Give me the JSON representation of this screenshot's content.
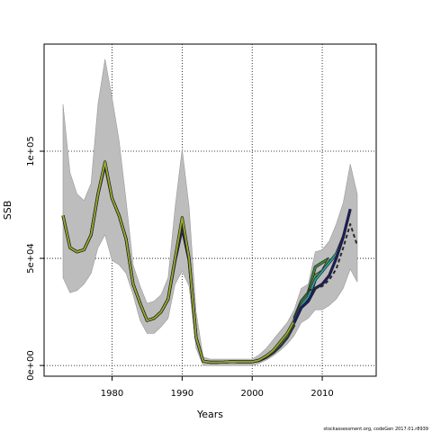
{
  "chart_data": {
    "type": "line",
    "title": "",
    "xlabel": "Years",
    "ylabel": "SSB",
    "xlim": [
      1970.3,
      2017.7
    ],
    "ylim": [
      -5000,
      150000
    ],
    "x_ticks": [
      1980,
      1990,
      2000,
      2010
    ],
    "x_tick_labels": [
      "1980",
      "1990",
      "2000",
      "2010"
    ],
    "y_ticks": [
      0,
      50000,
      100000
    ],
    "y_tick_labels": [
      "0e+00",
      "5e+04",
      "1e+05"
    ],
    "grid": "dotted",
    "legend": "none",
    "band": {
      "name": "",
      "x": [
        1973,
        1974,
        1975,
        1976,
        1977,
        1978,
        1979,
        1980,
        1981,
        1982,
        1983,
        1984,
        1985,
        1986,
        1987,
        1988,
        1989,
        1990,
        1991,
        1992,
        1993,
        1994,
        1995,
        1996,
        1997,
        1998,
        1999,
        2000,
        2001,
        2002,
        2003,
        2004,
        2005,
        2006,
        2007,
        2008,
        2009,
        2010,
        2011,
        2012,
        2013,
        2014,
        2015
      ],
      "upper": [
        122000,
        90000,
        80000,
        77000,
        85000,
        122000,
        143000,
        125000,
        105000,
        77000,
        47000,
        37000,
        29000,
        30000,
        33000,
        41000,
        74000,
        101000,
        74000,
        25000,
        4000,
        3000,
        3000,
        3000,
        3000,
        3000,
        3000,
        3000,
        5000,
        8000,
        12000,
        16000,
        20000,
        26000,
        36000,
        38000,
        53000,
        54000,
        58000,
        66000,
        76000,
        94000,
        80000
      ],
      "lower": [
        41000,
        34000,
        35000,
        38000,
        43000,
        55000,
        61000,
        49000,
        47000,
        43000,
        33000,
        21000,
        15000,
        15000,
        18000,
        22000,
        38000,
        44000,
        37000,
        8000,
        0,
        0,
        0,
        0,
        0,
        0,
        0,
        0,
        1000,
        2500,
        4500,
        7000,
        10000,
        14000,
        20000,
        22000,
        26000,
        26000,
        28000,
        31000,
        36000,
        45000,
        39000
      ]
    },
    "series": [
      {
        "name": "",
        "color": "#2a2a2a",
        "dashed": true,
        "x": [
          2008,
          2009,
          2010,
          2011,
          2012,
          2013,
          2014,
          2015
        ],
        "values": [
          35000,
          36000,
          37000,
          40000,
          45000,
          55000,
          66000,
          56000
        ]
      },
      {
        "name": "",
        "color": "#1b1b6e",
        "dashed": false,
        "x": [
          2006,
          2007,
          2008,
          2009,
          2010,
          2011,
          2012,
          2013,
          2014
        ],
        "values": [
          20000,
          27000,
          30000,
          36000,
          38000,
          42000,
          50000,
          60000,
          73000
        ]
      },
      {
        "name": "",
        "color": "#29a3a3",
        "dashed": false,
        "x": [
          2006,
          2007,
          2008,
          2009,
          2010,
          2011,
          2012,
          2013
        ],
        "values": [
          21000,
          28000,
          32000,
          40000,
          44000,
          48000,
          52000,
          60000
        ]
      },
      {
        "name": "",
        "color": "#6a9955",
        "dashed": false,
        "x": [
          2006,
          2007,
          2008,
          2009,
          2010,
          2011
        ],
        "values": [
          21000,
          29000,
          33000,
          42000,
          44000,
          50000
        ]
      },
      {
        "name": "",
        "color": "#3c8c3c",
        "dashed": false,
        "x": [
          2006,
          2007,
          2008,
          2009,
          2010,
          2011
        ],
        "values": [
          22000,
          30000,
          34000,
          46000,
          48000,
          50000
        ]
      },
      {
        "name": "",
        "color": "#9aab2e",
        "dashed": false,
        "x": [
          1973,
          1974,
          1975,
          1976,
          1977,
          1978,
          1979,
          1980,
          1981,
          1982,
          1983,
          1984,
          1985,
          1986,
          1987,
          1988,
          1989,
          1990,
          1991,
          1992,
          1993,
          1994,
          1995,
          1996,
          1997,
          1998,
          1999,
          2000,
          2001,
          2002,
          2003,
          2004,
          2005,
          2006,
          2007,
          2008,
          2009
        ],
        "values": [
          70000,
          55000,
          53000,
          54000,
          61000,
          80000,
          95000,
          78000,
          70000,
          59000,
          38000,
          29000,
          21000,
          22000,
          25000,
          31000,
          50000,
          69000,
          50000,
          13000,
          2000,
          1500,
          1500,
          1600,
          1800,
          1700,
          1700,
          1700,
          2500,
          4500,
          7000,
          11000,
          15000,
          21000,
          28000,
          31000,
          43000
        ]
      },
      {
        "name": "",
        "color": "#5d8a2e",
        "dashed": false,
        "x": [
          1973,
          1974,
          1975,
          1976,
          1977,
          1978,
          1979,
          1980,
          1981,
          1982,
          1983,
          1984,
          1985,
          1986,
          1987,
          1988,
          1989,
          1990,
          1991,
          1992,
          1993,
          1994,
          1995,
          1996,
          1997,
          1998,
          1999,
          2000,
          2001,
          2002,
          2003,
          2004,
          2005,
          2006,
          2007,
          2008,
          2009
        ],
        "values": [
          70000,
          55000,
          53000,
          54000,
          61000,
          80000,
          94000,
          78000,
          70000,
          59000,
          38000,
          29000,
          21000,
          22000,
          25000,
          31000,
          50000,
          67000,
          50000,
          13000,
          2000,
          1500,
          1500,
          1600,
          1800,
          1700,
          1700,
          1700,
          2500,
          4000,
          6500,
          10000,
          14000,
          20000,
          27000,
          30000,
          40000
        ]
      },
      {
        "name": "",
        "color": "#2e3b7a",
        "dashed": false,
        "x": [
          1973,
          1974,
          1975,
          1976,
          1977,
          1978,
          1979,
          1980,
          1981,
          1982,
          1983,
          1984,
          1985,
          1986,
          1987,
          1988,
          1989,
          1990,
          1991,
          1992,
          1993,
          1994,
          1995,
          1996,
          1997,
          1998,
          1999,
          2000,
          2001,
          2002,
          2003,
          2004,
          2005,
          2006
        ],
        "values": [
          70000,
          55000,
          53000,
          54000,
          61000,
          80000,
          94000,
          78000,
          70000,
          59000,
          38000,
          29000,
          21000,
          22000,
          25000,
          31000,
          49000,
          64000,
          49000,
          13000,
          2000,
          1500,
          1500,
          1600,
          1800,
          1700,
          1700,
          1700,
          2300,
          3800,
          6000,
          9000,
          13000,
          19000
        ]
      }
    ],
    "annotation": "stockassessment.org, codeGen 2017.01.r8939"
  }
}
